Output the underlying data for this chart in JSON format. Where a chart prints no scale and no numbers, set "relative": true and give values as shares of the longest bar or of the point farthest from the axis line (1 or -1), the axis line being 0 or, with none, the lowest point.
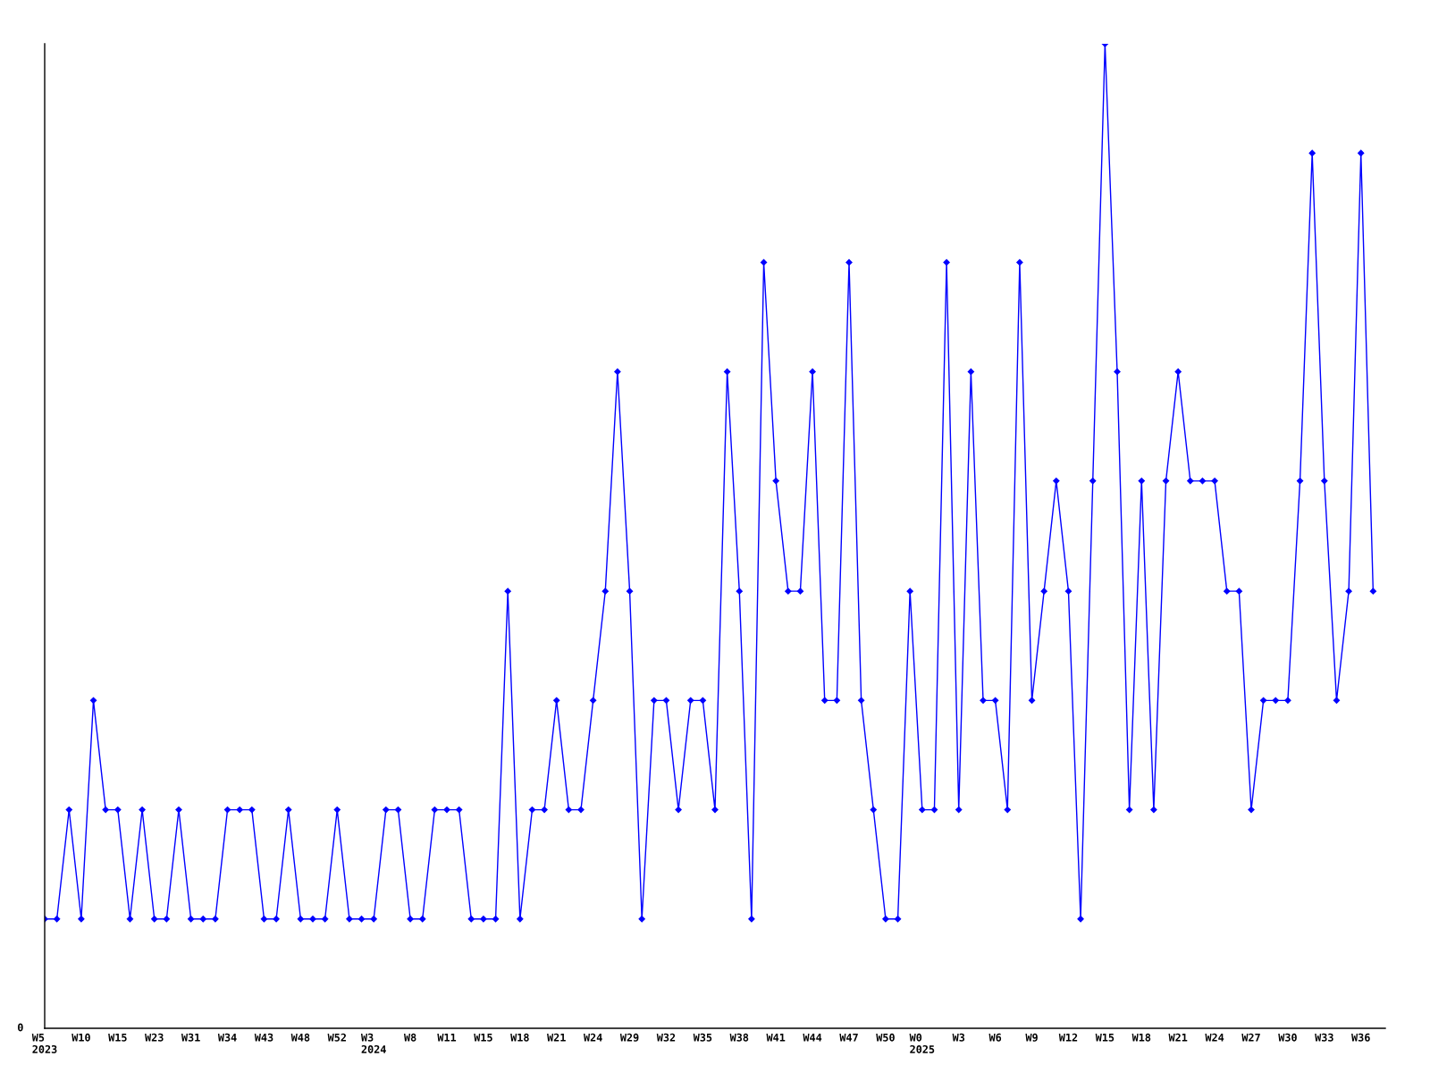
{
  "chart_data": {
    "type": "line",
    "categories": [
      "W5\n2023",
      null,
      null,
      "W10",
      null,
      null,
      "W15",
      null,
      null,
      "W23",
      null,
      null,
      "W31",
      null,
      null,
      "W34",
      null,
      null,
      "W43",
      null,
      null,
      "W48",
      null,
      null,
      "W52",
      null,
      null,
      "W3\n2024",
      null,
      null,
      "W8",
      null,
      null,
      "W11",
      null,
      null,
      "W15",
      null,
      null,
      "W18",
      null,
      null,
      "W21",
      null,
      null,
      "W24",
      null,
      null,
      "W29",
      null,
      null,
      "W32",
      null,
      null,
      "W35",
      null,
      null,
      "W38",
      null,
      null,
      "W41",
      null,
      null,
      "W44",
      null,
      null,
      "W47",
      null,
      null,
      "W50",
      null,
      null,
      "W0\n2025",
      null,
      null,
      "W3",
      null,
      null,
      "W6",
      null,
      null,
      "W9",
      null,
      null,
      "W12",
      null,
      null,
      "W15",
      null,
      null,
      "W18",
      null,
      null,
      "W21",
      null,
      null,
      "W24",
      null,
      null,
      "W27",
      null,
      null,
      "W30",
      null,
      null,
      "W33",
      null,
      null,
      "W36",
      null
    ],
    "series": [
      {
        "color": "#0000ff",
        "values": [
          0.111,
          0.111,
          0.222,
          0.111,
          0.333,
          0.222,
          0.222,
          0.111,
          0.222,
          0.111,
          0.111,
          0.222,
          0.111,
          0.111,
          0.111,
          0.222,
          0.222,
          0.222,
          0.111,
          0.111,
          0.222,
          0.111,
          0.111,
          0.111,
          0.222,
          0.111,
          0.111,
          0.111,
          0.222,
          0.222,
          0.111,
          0.111,
          0.222,
          0.222,
          0.222,
          0.111,
          0.111,
          0.111,
          0.444,
          0.111,
          0.222,
          0.222,
          0.333,
          0.222,
          0.222,
          0.333,
          0.444,
          0.667,
          0.444,
          0.111,
          0.333,
          0.333,
          0.222,
          0.333,
          0.333,
          0.222,
          0.667,
          0.444,
          0.111,
          0.778,
          0.556,
          0.444,
          0.444,
          0.667,
          0.333,
          0.333,
          0.778,
          0.333,
          0.222,
          0.111,
          0.111,
          0.444,
          0.222,
          0.222,
          0.778,
          0.222,
          0.667,
          0.333,
          0.333,
          0.222,
          0.778,
          0.333,
          0.444,
          0.556,
          0.444,
          0.111,
          0.556,
          1,
          0.667,
          0.222,
          0.556,
          0.222,
          0.556,
          0.667,
          0.556,
          0.556,
          0.556,
          0.444,
          0.444,
          0.222,
          0.333,
          0.333,
          0.333,
          0.556,
          0.889,
          0.556,
          0.333,
          0.444,
          0.889,
          0.444
        ]
      }
    ],
    "relative": true,
    "annotations": [
      "0"
    ],
    "marker": "diamond",
    "line_style": "solid"
  }
}
